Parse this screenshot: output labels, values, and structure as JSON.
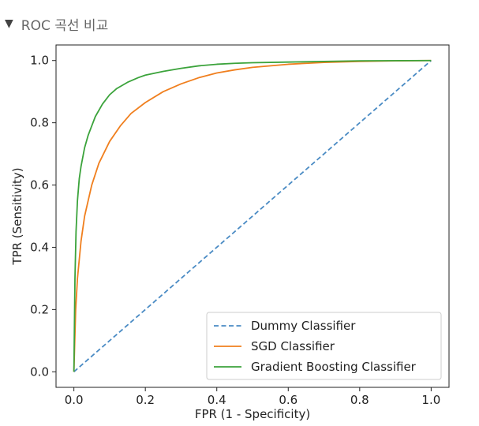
{
  "header": {
    "toggle_glyph": "▼",
    "title": "ROC 곡선 비교"
  },
  "chart_data": {
    "type": "line",
    "title": "",
    "xlabel": "FPR (1 - Specificity)",
    "ylabel": "TPR (Sensitivity)",
    "xlim": [
      -0.05,
      1.05
    ],
    "ylim": [
      -0.05,
      1.05
    ],
    "xticks": [
      0.0,
      0.2,
      0.4,
      0.6,
      0.8,
      1.0
    ],
    "yticks": [
      0.0,
      0.2,
      0.4,
      0.6,
      0.8,
      1.0
    ],
    "xtick_labels": [
      "0.0",
      "0.2",
      "0.4",
      "0.6",
      "0.8",
      "1.0"
    ],
    "ytick_labels": [
      "0.0",
      "0.2",
      "0.4",
      "0.6",
      "0.8",
      "1.0"
    ],
    "grid": false,
    "legend_position": "lower-right",
    "series": [
      {
        "name": "Dummy Classifier",
        "color": "#4a8bc4",
        "dashed": true,
        "x": [
          0.0,
          1.0
        ],
        "y": [
          0.0,
          1.0
        ]
      },
      {
        "name": "SGD Classifier",
        "color": "#f07f1e",
        "dashed": false,
        "x": [
          0.0,
          0.005,
          0.01,
          0.02,
          0.03,
          0.05,
          0.07,
          0.1,
          0.13,
          0.16,
          0.2,
          0.25,
          0.3,
          0.35,
          0.4,
          0.45,
          0.5,
          0.6,
          0.7,
          0.8,
          0.9,
          1.0
        ],
        "y": [
          0.0,
          0.2,
          0.3,
          0.42,
          0.5,
          0.6,
          0.67,
          0.74,
          0.79,
          0.83,
          0.865,
          0.9,
          0.925,
          0.945,
          0.96,
          0.97,
          0.978,
          0.988,
          0.994,
          0.997,
          0.999,
          1.0
        ]
      },
      {
        "name": "Gradient Boosting Classifier",
        "color": "#3ba33b",
        "dashed": false,
        "x": [
          0.0,
          0.003,
          0.006,
          0.01,
          0.015,
          0.02,
          0.03,
          0.04,
          0.05,
          0.06,
          0.08,
          0.1,
          0.12,
          0.15,
          0.18,
          0.2,
          0.25,
          0.3,
          0.35,
          0.4,
          0.45,
          0.5,
          0.6,
          0.7,
          0.8,
          1.0
        ],
        "y": [
          0.0,
          0.3,
          0.45,
          0.55,
          0.62,
          0.66,
          0.72,
          0.76,
          0.79,
          0.82,
          0.86,
          0.89,
          0.91,
          0.93,
          0.945,
          0.953,
          0.965,
          0.975,
          0.983,
          0.988,
          0.991,
          0.993,
          0.995,
          0.997,
          0.999,
          1.0
        ]
      }
    ]
  }
}
